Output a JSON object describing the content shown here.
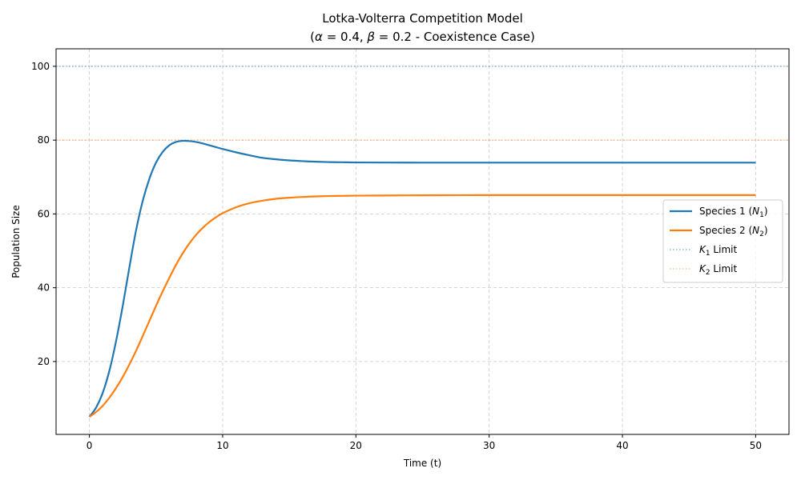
{
  "chart_data": {
    "type": "line",
    "title": "Lotka-Volterra Competition Model",
    "subtitle": "(α = 0.4, β = 0.2 - Coexistence Case)",
    "subtitle_parts": {
      "open": "(",
      "alpha_sym": "α",
      "eq1": " = 0.4, ",
      "beta_sym": "β",
      "eq2": " = 0.2 - Coexistence Case)"
    },
    "xlabel": "Time (t)",
    "ylabel": "Population Size",
    "xlim": [
      -2.5,
      52.5
    ],
    "ylim": [
      0.25,
      104.75
    ],
    "xticks": [
      0,
      10,
      20,
      30,
      40,
      50
    ],
    "yticks": [
      20,
      40,
      60,
      80,
      100
    ],
    "grid": true,
    "legend_position": "center-right",
    "series": [
      {
        "name": "Species 1 (N1)",
        "label_prefix": "Species 1 (",
        "label_symbol": "N",
        "label_sub": "1",
        "label_suffix": ")",
        "color": "#1f77b4",
        "style": "solid",
        "x": [
          0,
          0.5,
          1,
          1.5,
          2,
          2.5,
          3,
          3.5,
          4,
          4.5,
          5,
          5.5,
          6,
          6.5,
          7,
          7.5,
          8,
          8.5,
          9,
          9.5,
          10,
          11,
          12,
          13,
          14,
          15,
          16,
          17,
          18,
          19,
          20,
          22,
          25,
          30,
          35,
          40,
          45,
          50
        ],
        "y": [
          5,
          7.5,
          11.5,
          17.5,
          25.5,
          35,
          45.5,
          55.5,
          63.5,
          69.5,
          73.9,
          76.8,
          78.6,
          79.5,
          79.8,
          79.75,
          79.5,
          79.1,
          78.6,
          78.1,
          77.6,
          76.7,
          75.9,
          75.2,
          74.8,
          74.5,
          74.3,
          74.15,
          74.05,
          74.0,
          73.95,
          73.92,
          73.9,
          73.9,
          73.9,
          73.9,
          73.9,
          73.9
        ]
      },
      {
        "name": "Species 2 (N2)",
        "label_prefix": "Species 2 (",
        "label_symbol": "N",
        "label_sub": "2",
        "label_suffix": ")",
        "color": "#ff7f0e",
        "style": "solid",
        "x": [
          0,
          0.5,
          1,
          1.5,
          2,
          2.5,
          3,
          3.5,
          4,
          4.5,
          5,
          5.5,
          6,
          6.5,
          7,
          7.5,
          8,
          8.5,
          9,
          9.5,
          10,
          11,
          12,
          13,
          14,
          15,
          16,
          17,
          18,
          19,
          20,
          22,
          25,
          30,
          35,
          40,
          45,
          50
        ],
        "y": [
          5,
          6.3,
          8,
          10.2,
          12.8,
          15.8,
          19.2,
          22.9,
          26.9,
          31,
          35.1,
          39,
          42.7,
          46.2,
          49.3,
          52.0,
          54.3,
          56.2,
          57.8,
          59.1,
          60.2,
          61.8,
          62.9,
          63.6,
          64.1,
          64.4,
          64.6,
          64.75,
          64.85,
          64.9,
          64.95,
          65.0,
          65.05,
          65.1,
          65.1,
          65.1,
          65.1,
          65.1
        ]
      },
      {
        "name": "K1 Limit",
        "label_prefix": "",
        "label_symbol": "K",
        "label_sub": "1",
        "label_suffix": " Limit",
        "color": "#1f77b4",
        "style": "dotted",
        "hline": 100
      },
      {
        "name": "K2 Limit",
        "label_prefix": "",
        "label_symbol": "K",
        "label_sub": "2",
        "label_suffix": " Limit",
        "color": "#ff7f0e",
        "style": "dotted",
        "hline": 80
      }
    ]
  }
}
